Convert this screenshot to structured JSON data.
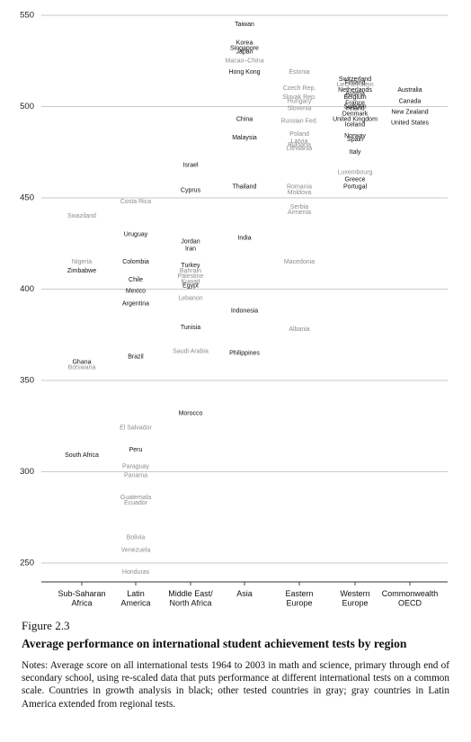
{
  "chart_data": {
    "type": "scatter",
    "title": "",
    "xlabel": "",
    "ylabel": "",
    "ylim": [
      244,
      552
    ],
    "yticks": [
      250,
      300,
      350,
      400,
      450,
      500,
      550
    ],
    "grid": true,
    "categories": [
      [
        "Sub-Saharan",
        "Africa"
      ],
      [
        "Latin",
        "America"
      ],
      [
        "Middle East/",
        "North Africa"
      ],
      [
        "Asia"
      ],
      [
        "Eastern",
        "Europe"
      ],
      [
        "Western",
        "Europe"
      ],
      [
        "Commonwealth",
        "OECD"
      ]
    ],
    "points": [
      {
        "label": "Swaziland",
        "cat": 0,
        "y": 440,
        "color": "gray"
      },
      {
        "label": "Nigeria",
        "cat": 0,
        "y": 415,
        "color": "gray"
      },
      {
        "label": "Zimbabwe",
        "cat": 0,
        "y": 410,
        "color": "black"
      },
      {
        "label": "Ghana",
        "cat": 0,
        "y": 360,
        "color": "black"
      },
      {
        "label": "Botswana",
        "cat": 0,
        "y": 357,
        "color": "gray"
      },
      {
        "label": "South Africa",
        "cat": 0,
        "y": 309,
        "color": "black"
      },
      {
        "label": "Costa Rica",
        "cat": 1,
        "y": 448,
        "color": "gray"
      },
      {
        "label": "Uruguay",
        "cat": 1,
        "y": 430,
        "color": "black"
      },
      {
        "label": "Colombia",
        "cat": 1,
        "y": 415,
        "color": "black"
      },
      {
        "label": "Chile",
        "cat": 1,
        "y": 405,
        "color": "black"
      },
      {
        "label": "Mexico",
        "cat": 1,
        "y": 399,
        "color": "black"
      },
      {
        "label": "Argentina",
        "cat": 1,
        "y": 392,
        "color": "black"
      },
      {
        "label": "Brazil",
        "cat": 1,
        "y": 363,
        "color": "black"
      },
      {
        "label": "El Salvador",
        "cat": 1,
        "y": 324,
        "color": "gray"
      },
      {
        "label": "Peru",
        "cat": 1,
        "y": 312,
        "color": "black"
      },
      {
        "label": "Paraguay",
        "cat": 1,
        "y": 303,
        "color": "gray"
      },
      {
        "label": "Panama",
        "cat": 1,
        "y": 298,
        "color": "gray"
      },
      {
        "label": "Guatemala",
        "cat": 1,
        "y": 286,
        "color": "gray"
      },
      {
        "label": "Ecuador",
        "cat": 1,
        "y": 283,
        "color": "gray"
      },
      {
        "label": "Bolivia",
        "cat": 1,
        "y": 264,
        "color": "gray"
      },
      {
        "label": "Venezuela",
        "cat": 1,
        "y": 257,
        "color": "gray"
      },
      {
        "label": "Honduras",
        "cat": 1,
        "y": 245,
        "color": "gray"
      },
      {
        "label": "Israel",
        "cat": 2,
        "y": 468,
        "color": "black"
      },
      {
        "label": "Cyprus",
        "cat": 2,
        "y": 454,
        "color": "black"
      },
      {
        "label": "Jordan",
        "cat": 2,
        "y": 426,
        "color": "black"
      },
      {
        "label": "Iran",
        "cat": 2,
        "y": 422,
        "color": "black"
      },
      {
        "label": "Turkey",
        "cat": 2,
        "y": 413,
        "color": "black"
      },
      {
        "label": "Bahrain",
        "cat": 2,
        "y": 410,
        "color": "gray"
      },
      {
        "label": "Palestine",
        "cat": 2,
        "y": 407,
        "color": "gray"
      },
      {
        "label": "Kuwait",
        "cat": 2,
        "y": 404,
        "color": "gray"
      },
      {
        "label": "Egypt",
        "cat": 2,
        "y": 402,
        "color": "black"
      },
      {
        "label": "Lebanon",
        "cat": 2,
        "y": 395,
        "color": "gray"
      },
      {
        "label": "Tunisia",
        "cat": 2,
        "y": 379,
        "color": "black"
      },
      {
        "label": "Saudi Arabia",
        "cat": 2,
        "y": 366,
        "color": "gray"
      },
      {
        "label": "Morocco",
        "cat": 2,
        "y": 332,
        "color": "black"
      },
      {
        "label": "Taiwan",
        "cat": 3,
        "y": 545,
        "color": "black"
      },
      {
        "label": "Korea",
        "cat": 3,
        "y": 535,
        "color": "black"
      },
      {
        "label": "Singapore",
        "cat": 3,
        "y": 532,
        "color": "black"
      },
      {
        "label": "Japan",
        "cat": 3,
        "y": 530,
        "color": "black"
      },
      {
        "label": "Macao–China",
        "cat": 3,
        "y": 525,
        "color": "gray"
      },
      {
        "label": "Hong Kong",
        "cat": 3,
        "y": 519,
        "color": "black"
      },
      {
        "label": "China",
        "cat": 3,
        "y": 493,
        "color": "black"
      },
      {
        "label": "Malaysia",
        "cat": 3,
        "y": 483,
        "color": "black"
      },
      {
        "label": "Thailand",
        "cat": 3,
        "y": 456,
        "color": "black"
      },
      {
        "label": "India",
        "cat": 3,
        "y": 428,
        "color": "black"
      },
      {
        "label": "Indonesia",
        "cat": 3,
        "y": 388,
        "color": "black"
      },
      {
        "label": "Philippines",
        "cat": 3,
        "y": 365,
        "color": "black"
      },
      {
        "label": "Estonia",
        "cat": 4,
        "y": 519,
        "color": "gray"
      },
      {
        "label": "Czech Rep.",
        "cat": 4,
        "y": 510,
        "color": "gray"
      },
      {
        "label": "Slovak Rep.",
        "cat": 4,
        "y": 505,
        "color": "gray"
      },
      {
        "label": "Hungary",
        "cat": 4,
        "y": 503,
        "color": "gray"
      },
      {
        "label": "Slovenia",
        "cat": 4,
        "y": 499,
        "color": "gray"
      },
      {
        "label": "Russian Fed.",
        "cat": 4,
        "y": 492,
        "color": "gray"
      },
      {
        "label": "Poland",
        "cat": 4,
        "y": 485,
        "color": "gray"
      },
      {
        "label": "Latvia",
        "cat": 4,
        "y": 481,
        "color": "gray"
      },
      {
        "label": "Bulgaria",
        "cat": 4,
        "y": 479,
        "color": "gray"
      },
      {
        "label": "Lithuania",
        "cat": 4,
        "y": 477,
        "color": "gray"
      },
      {
        "label": "Romania",
        "cat": 4,
        "y": 456,
        "color": "gray"
      },
      {
        "label": "Moldova",
        "cat": 4,
        "y": 453,
        "color": "gray"
      },
      {
        "label": "Serbia",
        "cat": 4,
        "y": 445,
        "color": "gray"
      },
      {
        "label": "Armenia",
        "cat": 4,
        "y": 442,
        "color": "gray"
      },
      {
        "label": "Macedonia",
        "cat": 4,
        "y": 415,
        "color": "gray"
      },
      {
        "label": "Albania",
        "cat": 4,
        "y": 378,
        "color": "gray"
      },
      {
        "label": "Switzerland",
        "cat": 5,
        "y": 515,
        "color": "black"
      },
      {
        "label": "Finland",
        "cat": 5,
        "y": 513,
        "color": "black"
      },
      {
        "label": "Liechtenstein",
        "cat": 5,
        "y": 512,
        "color": "gray"
      },
      {
        "label": "Netherlands",
        "cat": 5,
        "y": 509,
        "color": "black"
      },
      {
        "label": "Austria",
        "cat": 5,
        "y": 507,
        "color": "black"
      },
      {
        "label": "Belgium",
        "cat": 5,
        "y": 505,
        "color": "black"
      },
      {
        "label": "France",
        "cat": 5,
        "y": 502,
        "color": "black"
      },
      {
        "label": "Sweden",
        "cat": 5,
        "y": 500,
        "color": "black"
      },
      {
        "label": "Ireland",
        "cat": 5,
        "y": 499,
        "color": "black"
      },
      {
        "label": "Denmark",
        "cat": 5,
        "y": 496,
        "color": "black"
      },
      {
        "label": "United Kingdom",
        "cat": 5,
        "y": 493,
        "color": "black"
      },
      {
        "label": "Iceland",
        "cat": 5,
        "y": 490,
        "color": "black"
      },
      {
        "label": "Norway",
        "cat": 5,
        "y": 484,
        "color": "black"
      },
      {
        "label": "Spain",
        "cat": 5,
        "y": 482,
        "color": "black"
      },
      {
        "label": "Italy",
        "cat": 5,
        "y": 475,
        "color": "black"
      },
      {
        "label": "Luxembourg",
        "cat": 5,
        "y": 464,
        "color": "gray"
      },
      {
        "label": "Greece",
        "cat": 5,
        "y": 460,
        "color": "black"
      },
      {
        "label": "Portugal",
        "cat": 5,
        "y": 456,
        "color": "black"
      },
      {
        "label": "Australia",
        "cat": 6,
        "y": 509,
        "color": "black"
      },
      {
        "label": "Canada",
        "cat": 6,
        "y": 503,
        "color": "black"
      },
      {
        "label": "New Zealand",
        "cat": 6,
        "y": 497,
        "color": "black"
      },
      {
        "label": "United States",
        "cat": 6,
        "y": 491,
        "color": "black"
      }
    ]
  },
  "caption": {
    "figure_label": "Figure 2.3",
    "title": "Average performance on international student achievement tests by region",
    "notes": "Notes: Average score on all international tests 1964 to 2003 in math and science, primary through end of secondary school, using re-scaled data that puts performance at different international tests on a common scale. Countries in growth analysis in black; other tested countries in gray; gray countries in Latin America extended from regional tests."
  },
  "colors": {
    "black": "#111111",
    "gray": "#8c8c8c"
  }
}
